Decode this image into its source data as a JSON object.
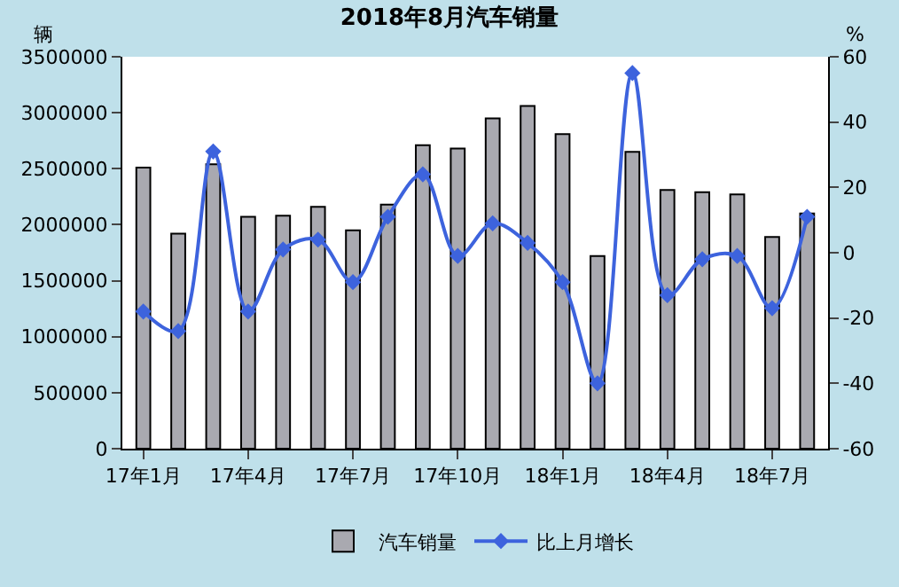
{
  "chart_data": {
    "type": "bar",
    "title": "2018年8月汽车销量",
    "categories": [
      "17年1月",
      null,
      null,
      "17年4月",
      null,
      null,
      "17年7月",
      null,
      null,
      "17年10月",
      null,
      null,
      "18年1月",
      null,
      null,
      "18年4月",
      null,
      null,
      "18年7月",
      null
    ],
    "series": [
      {
        "name": "汽车销量",
        "color": "#a9a9b0",
        "values": [
          2510000,
          1920000,
          2540000,
          2070000,
          2080000,
          2160000,
          1950000,
          2180000,
          2710000,
          2680000,
          2950000,
          3060000,
          2810000,
          1720000,
          2650000,
          2310000,
          2290000,
          2270000,
          1890000,
          2100000
        ]
      },
      {
        "name": "比上月增长",
        "type": "line",
        "axis": "y2",
        "color": "#3d63dd",
        "marker": "diamond",
        "values": [
          -18,
          -24,
          31,
          -18,
          1,
          4,
          -9,
          11,
          24,
          -1,
          9,
          3,
          -9,
          -40,
          55,
          -13,
          -2,
          -1,
          -17,
          11
        ]
      }
    ],
    "ylabel": "辆",
    "y2label": "%",
    "ylim": [
      0,
      3500000
    ],
    "yticks": [
      0,
      500000,
      1000000,
      1500000,
      2000000,
      2500000,
      3000000,
      3500000
    ],
    "y2lim": [
      -60,
      60
    ],
    "y2ticks": [
      -60,
      -40,
      -20,
      0,
      20,
      40,
      60
    ],
    "legend": "bottom"
  }
}
